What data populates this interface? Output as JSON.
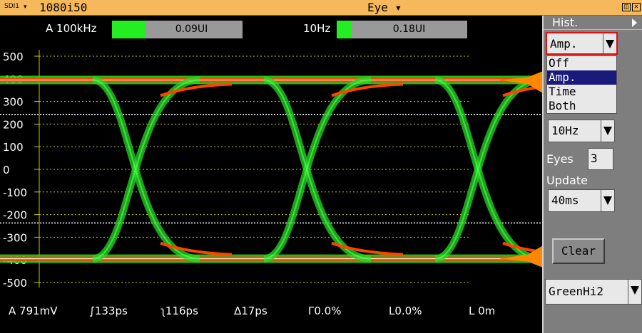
{
  "titlebar": {
    "input_label": "SDI1",
    "format": "1080i50",
    "title": "Eye",
    "title_arrow": "▾",
    "restore_icon": "restore-icon",
    "close_icon": "close-icon"
  },
  "jitter": {
    "hp1_label": "A 100kHz",
    "hp1_value": "0.09UI",
    "hp1_fill": 0.25,
    "hp2_label": "10Hz",
    "hp2_value": "0.18UI",
    "hp2_fill": 0.11
  },
  "axis": {
    "yticks": [
      "500",
      "400",
      "300",
      "200",
      "100",
      "0",
      "-100",
      "-200",
      "-300",
      "-400",
      "-500"
    ]
  },
  "readouts": {
    "amplitude": "A 791mV",
    "rise_time": "∫133ps",
    "fall_time": "ʅ116ps",
    "delta": "Δ17ps",
    "overshoot_rise": "Γ0.0%",
    "overshoot_fall": "L0.0%",
    "cable_length": "L 0m"
  },
  "panel": {
    "title": "Hist.",
    "hist_select": "Amp.",
    "hist_options": [
      "Off",
      "Amp.",
      "Time",
      "Both"
    ],
    "hist_selected_index": 1,
    "filter_select": "10Hz",
    "eyes_label": "Eyes",
    "eyes_value": "3",
    "update_label": "Update",
    "update_select": "40ms",
    "clear_label": "Clear",
    "color_select": "GreenHi2"
  },
  "colors": {
    "trace": "#22dd22",
    "trace_hot": "#ff4400",
    "histogram": "#ff8800",
    "grid": "#c8c800",
    "panel_bg": "#7e7e7e",
    "titlebar": "#f5b85a"
  }
}
